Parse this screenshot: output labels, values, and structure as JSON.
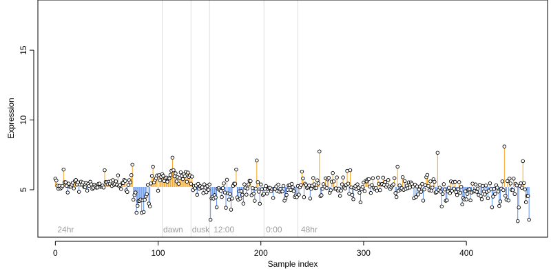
{
  "chart_data": {
    "type": "scatter",
    "title": "",
    "xlabel": "Sample index",
    "ylabel": "Expression",
    "xlim": [
      -17,
      479
    ],
    "ylim": [
      1.6,
      18.6
    ],
    "xticks": [
      0,
      100,
      200,
      300,
      400
    ],
    "yticks": [
      5,
      10,
      15
    ],
    "baseline": 5.2,
    "grid": false,
    "style": {
      "above_color": "#f5a623",
      "below_color": "#5a8ff0",
      "point_fill": "#ffffff",
      "point_stroke": "#000000",
      "divider_color": "#dddddd",
      "label_color": "#9e9e9e"
    },
    "segments": [
      {
        "label": "24hr",
        "start": 0,
        "divider": null
      },
      {
        "label": "dawn",
        "start": 103,
        "divider": 104
      },
      {
        "label": "dusk",
        "start": 131,
        "divider": 132
      },
      {
        "label": "12:00",
        "start": 152,
        "divider": 150
      },
      {
        "label": "0:00",
        "start": 203,
        "divider": 203
      },
      {
        "label": "48hr",
        "start": 237,
        "divider": 236
      }
    ],
    "n_points": 462,
    "seed": 20240,
    "highlights": [
      {
        "x": 8,
        "y": 6.45
      },
      {
        "x": 74,
        "y": 6.05
      },
      {
        "x": 75,
        "y": 6.8
      },
      {
        "x": 79,
        "y": 3.35
      },
      {
        "x": 82,
        "y": 4.2
      },
      {
        "x": 84,
        "y": 3.35
      },
      {
        "x": 95,
        "y": 6.65
      },
      {
        "x": 114,
        "y": 7.3
      },
      {
        "x": 151,
        "y": 2.85
      },
      {
        "x": 176,
        "y": 6.45
      },
      {
        "x": 196,
        "y": 7.1
      },
      {
        "x": 257,
        "y": 7.75
      },
      {
        "x": 270,
        "y": 6.2
      },
      {
        "x": 284,
        "y": 6.35
      },
      {
        "x": 333,
        "y": 6.65
      },
      {
        "x": 372,
        "y": 7.65
      },
      {
        "x": 376,
        "y": 3.8
      },
      {
        "x": 437,
        "y": 8.1
      },
      {
        "x": 450,
        "y": 2.75
      },
      {
        "x": 455,
        "y": 7.05
      },
      {
        "x": 461,
        "y": 2.85
      }
    ],
    "regions": [
      {
        "from": 0,
        "to": 76,
        "mean": 5.35,
        "sd": 0.28
      },
      {
        "from": 76,
        "to": 93,
        "mean": 4.4,
        "sd": 0.45
      },
      {
        "from": 93,
        "to": 104,
        "mean": 5.4,
        "sd": 0.35
      },
      {
        "from": 104,
        "to": 132,
        "mean": 5.9,
        "sd": 0.35
      },
      {
        "from": 132,
        "to": 150,
        "mean": 5.2,
        "sd": 0.3
      },
      {
        "from": 150,
        "to": 203,
        "mean": 4.8,
        "sd": 0.5
      },
      {
        "from": 203,
        "to": 236,
        "mean": 5.05,
        "sd": 0.35
      },
      {
        "from": 236,
        "to": 343,
        "mean": 5.2,
        "sd": 0.45
      },
      {
        "from": 343,
        "to": 392,
        "mean": 5.1,
        "sd": 0.45
      },
      {
        "from": 392,
        "to": 431,
        "mean": 4.95,
        "sd": 0.35
      },
      {
        "from": 431,
        "to": 462,
        "mean": 4.9,
        "sd": 0.55
      }
    ]
  }
}
